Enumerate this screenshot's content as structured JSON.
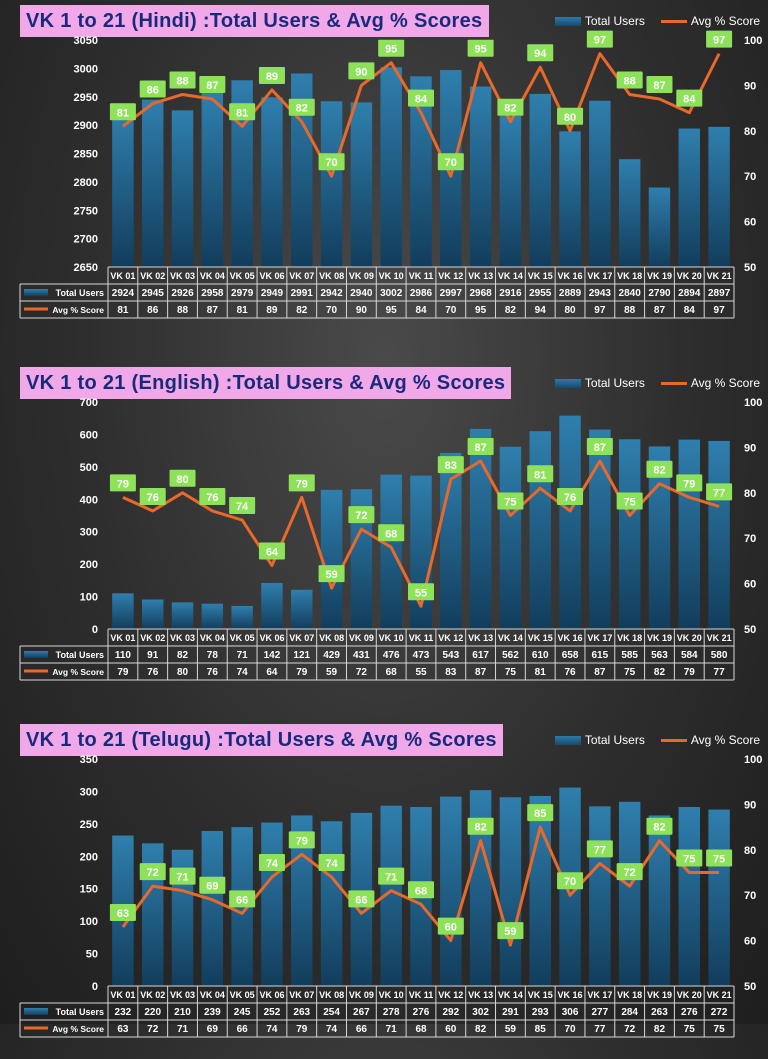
{
  "colors": {
    "bar": "#1f5f8b",
    "line": "#e8692a",
    "label_bg": "#8ee25a",
    "title_bg": "#f0a8e8",
    "title_text": "#1a2a7a"
  },
  "legend": {
    "bar_label": "Total Users",
    "line_label": "Avg % Score"
  },
  "table_labels": {
    "bar_row": "Total Users",
    "line_row": "Avg % Score"
  },
  "chart_data": [
    {
      "type": "bar",
      "title": "VK 1 to 21 (Hindi) :Total Users & Avg % Scores",
      "categories": [
        "VK 01",
        "VK 02",
        "VK 03",
        "VK 04",
        "VK 05",
        "VK 06",
        "VK 07",
        "VK 08",
        "VK 09",
        "VK 10",
        "VK 11",
        "VK 12",
        "VK 13",
        "VK 14",
        "VK 15",
        "VK 16",
        "VK 17",
        "VK 18",
        "VK 19",
        "VK 20",
        "VK 21"
      ],
      "series": [
        {
          "name": "Total Users",
          "type": "bar",
          "axis": "left",
          "values": [
            2924,
            2945,
            2926,
            2958,
            2979,
            2949,
            2991,
            2942,
            2940,
            3002,
            2986,
            2997,
            2968,
            2916,
            2955,
            2889,
            2943,
            2840,
            2790,
            2894,
            2897
          ]
        },
        {
          "name": "Avg % Score",
          "type": "line",
          "axis": "right",
          "values": [
            81,
            86,
            88,
            87,
            81,
            89,
            82,
            70,
            90,
            95,
            84,
            70,
            95,
            82,
            94,
            80,
            97,
            88,
            87,
            84,
            97
          ]
        }
      ],
      "ylim": [
        2650,
        3050
      ],
      "yticks": [
        2650,
        2700,
        2750,
        2800,
        2850,
        2900,
        2950,
        3000,
        3050
      ],
      "y2lim": [
        50,
        100
      ],
      "y2ticks": [
        50,
        60,
        70,
        80,
        90,
        100
      ],
      "grid": false,
      "legend_position": "top-right"
    },
    {
      "type": "bar",
      "title": "VK 1 to 21 (English) :Total Users & Avg % Scores",
      "categories": [
        "VK 01",
        "VK 02",
        "VK 03",
        "VK 04",
        "VK 05",
        "VK 06",
        "VK 07",
        "VK 08",
        "VK 09",
        "VK 10",
        "VK 11",
        "VK 12",
        "VK 13",
        "VK 14",
        "VK 15",
        "VK 16",
        "VK 17",
        "VK 18",
        "VK 19",
        "VK 20",
        "VK 21"
      ],
      "series": [
        {
          "name": "Total Users",
          "type": "bar",
          "axis": "left",
          "values": [
            110,
            91,
            82,
            78,
            71,
            142,
            121,
            429,
            431,
            476,
            473,
            543,
            617,
            562,
            610,
            658,
            615,
            585,
            563,
            584,
            580
          ]
        },
        {
          "name": "Avg % Score",
          "type": "line",
          "axis": "right",
          "values": [
            79,
            76,
            80,
            76,
            74,
            64,
            79,
            59,
            72,
            68,
            55,
            83,
            87,
            75,
            81,
            76,
            87,
            75,
            82,
            79,
            77
          ]
        }
      ],
      "ylim": [
        0,
        700
      ],
      "yticks": [
        0,
        100,
        200,
        300,
        400,
        500,
        600,
        700
      ],
      "y2lim": [
        50,
        100
      ],
      "y2ticks": [
        50,
        60,
        70,
        80,
        90,
        100
      ],
      "grid": false,
      "legend_position": "top-right"
    },
    {
      "type": "bar",
      "title": "VK 1 to 21 (Telugu) :Total Users & Avg % Scores",
      "categories": [
        "VK 01",
        "VK 02",
        "VK 03",
        "VK 04",
        "VK 05",
        "VK 06",
        "VK 07",
        "VK 08",
        "VK 09",
        "VK 10",
        "VK 11",
        "VK 12",
        "VK 13",
        "VK 14",
        "VK 15",
        "VK 16",
        "VK 17",
        "VK 18",
        "VK 19",
        "VK 20",
        "VK 21"
      ],
      "series": [
        {
          "name": "Total Users",
          "type": "bar",
          "axis": "left",
          "values": [
            232,
            220,
            210,
            239,
            245,
            252,
            263,
            254,
            267,
            278,
            276,
            292,
            302,
            291,
            293,
            306,
            277,
            284,
            263,
            276,
            272
          ]
        },
        {
          "name": "Avg % Score",
          "type": "line",
          "axis": "right",
          "values": [
            63,
            72,
            71,
            69,
            66,
            74,
            79,
            74,
            66,
            71,
            68,
            60,
            82,
            59,
            85,
            70,
            77,
            72,
            82,
            75,
            75
          ]
        }
      ],
      "ylim": [
        0,
        350
      ],
      "yticks": [
        0,
        50,
        100,
        150,
        200,
        250,
        300,
        350
      ],
      "y2lim": [
        50,
        100
      ],
      "y2ticks": [
        50,
        60,
        70,
        80,
        90,
        100
      ],
      "grid": false,
      "legend_position": "top-right"
    }
  ]
}
